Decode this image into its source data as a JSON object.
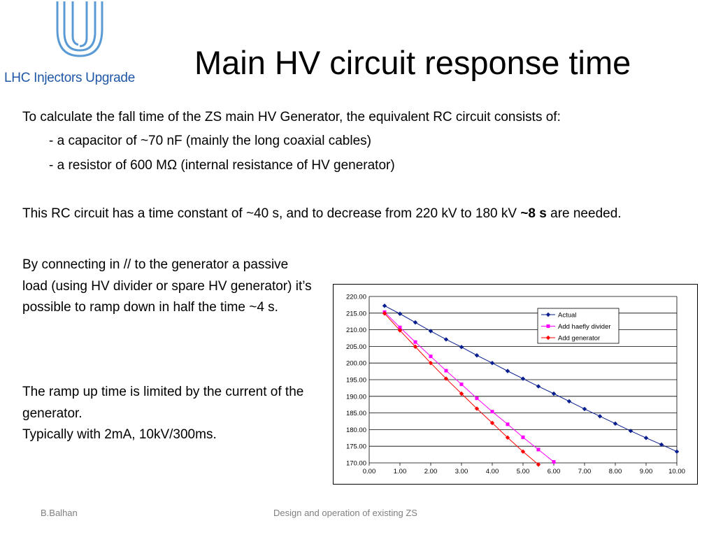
{
  "logo": {
    "text": "LHC Injectors Upgrade",
    "color": "#5b9bd5",
    "text_color": "#1f57a6"
  },
  "slide": {
    "title": "Main HV circuit response time",
    "paragraph1": "To calculate the fall time of the ZS main HV Generator, the equivalent RC circuit consists of:",
    "bullet1": "- a capacitor of ~70 nF (mainly the long coaxial cables)",
    "bullet2": "- a resistor of 600 MΩ (internal resistance of HV generator)",
    "paragraph2_before": "This RC circuit has a time constant of ~40 s, and to decrease from 220 kV to 180 kV ",
    "paragraph2_bold": "~8 s",
    "paragraph2_after": " are needed.",
    "paragraph3": "By connecting in // to the generator a passive load (using HV divider or spare HV generator) it’s possible to ramp down in half the time ~4 s.",
    "paragraph4_line1": "The ramp up time is limited by the current of the generator.",
    "paragraph4_line2": "Typically with 2mA, 10kV/300ms."
  },
  "footer": {
    "author": "B.Balhan",
    "center": "Design and operation of existing ZS"
  },
  "chart_data": {
    "type": "line",
    "xlim": [
      0,
      10
    ],
    "ylim": [
      170,
      220
    ],
    "x_ticks": [
      0,
      1,
      2,
      3,
      4,
      5,
      6,
      7,
      8,
      9,
      10
    ],
    "x_tick_labels": [
      "0.00",
      "1.00",
      "2.00",
      "3.00",
      "4.00",
      "5.00",
      "6.00",
      "7.00",
      "8.00",
      "9.00",
      "10.00"
    ],
    "y_ticks": [
      170,
      175,
      180,
      185,
      190,
      195,
      200,
      205,
      210,
      215,
      220
    ],
    "y_tick_labels": [
      "170.00",
      "175.00",
      "180.00",
      "185.00",
      "190.00",
      "195.00",
      "200.00",
      "205.00",
      "210.00",
      "215.00",
      "220.00"
    ],
    "grid": "horizontal",
    "legend_position": "top-right",
    "series": [
      {
        "name": "Actual",
        "color": "#0a1f8f",
        "marker": "diamond",
        "x": [
          0.5,
          1.0,
          1.5,
          2.0,
          2.5,
          3.0,
          3.5,
          4.0,
          4.5,
          5.0,
          5.5,
          6.0,
          6.5,
          7.0,
          7.5,
          8.0,
          8.5,
          9.0,
          9.5,
          10.0
        ],
        "y": [
          217.2,
          214.8,
          212.2,
          209.6,
          207.1,
          204.8,
          202.3,
          200.0,
          197.6,
          195.3,
          193.0,
          190.8,
          188.5,
          186.2,
          184.0,
          181.8,
          179.6,
          177.5,
          175.5,
          173.4
        ]
      },
      {
        "name": "Add haefly divider",
        "color": "#ff00ff",
        "marker": "square",
        "x": [
          0.5,
          1.0,
          1.5,
          2.0,
          2.5,
          3.0,
          3.5,
          4.0,
          4.5,
          5.0,
          5.5,
          6.0
        ],
        "y": [
          215.3,
          210.7,
          206.3,
          202.0,
          197.7,
          193.6,
          189.4,
          185.4,
          181.6,
          177.7,
          174.0,
          170.3
        ]
      },
      {
        "name": "Add generator",
        "color": "#ff0000",
        "marker": "diamond",
        "x": [
          0.5,
          1.0,
          1.5,
          2.0,
          2.5,
          3.0,
          3.5,
          4.0,
          4.5,
          5.0,
          5.5
        ],
        "y": [
          214.9,
          209.8,
          204.9,
          200.0,
          195.3,
          190.8,
          186.3,
          182.0,
          177.6,
          173.4,
          169.5
        ]
      }
    ]
  }
}
